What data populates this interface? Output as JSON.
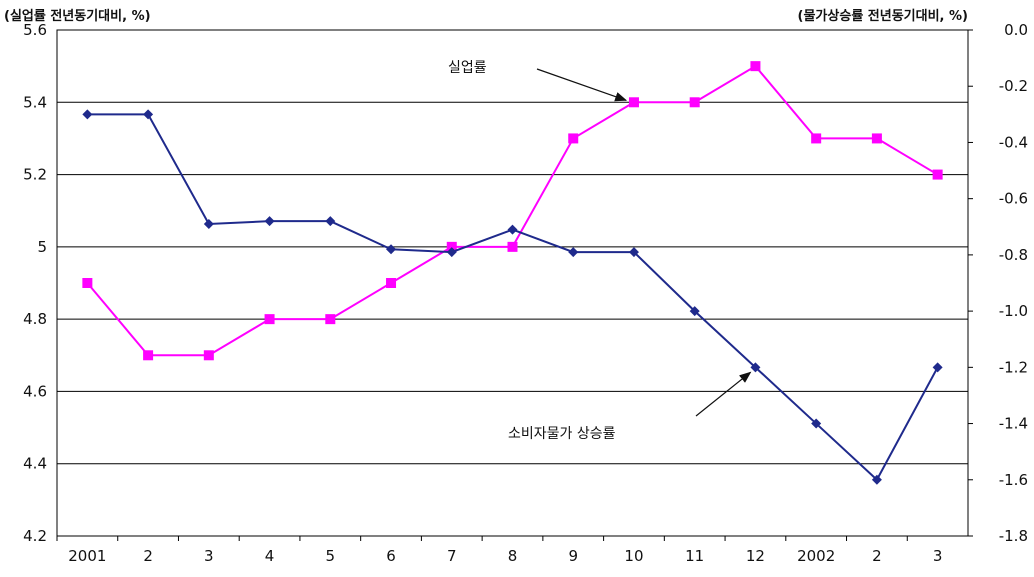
{
  "chart_data": {
    "type": "line",
    "left_axis_title": "(실업률 전년동기대비, %)",
    "right_axis_title": "(물가상승률 전년동기대비, %)",
    "categories": [
      "2001",
      "2",
      "3",
      "4",
      "5",
      "6",
      "7",
      "8",
      "9",
      "10",
      "11",
      "12",
      "2002",
      "2",
      "3"
    ],
    "y_left": {
      "min": 4.2,
      "max": 5.6,
      "step": 0.2,
      "ticks": [
        "4.2",
        "4.4",
        "4.6",
        "4.8",
        "5",
        "5.2",
        "5.4",
        "5.6"
      ]
    },
    "y_right": {
      "min": -1.8,
      "max": 0.0,
      "step": 0.2,
      "ticks": [
        "-1.8",
        "-1.6",
        "-1.4",
        "-1.2",
        "-1.0",
        "-0.8",
        "-0.6",
        "-0.4",
        "-0.2",
        "0.0"
      ]
    },
    "grid": true,
    "series": [
      {
        "name": "실업률",
        "axis": "left",
        "color": "#ff00ff",
        "marker": "square",
        "values": [
          4.9,
          4.7,
          4.7,
          4.8,
          4.8,
          4.9,
          5.0,
          5.0,
          5.3,
          5.4,
          5.4,
          5.5,
          5.3,
          5.3,
          5.2
        ]
      },
      {
        "name": "소비자물가 상승률",
        "axis": "right",
        "color": "#1f2a8c",
        "marker": "diamond",
        "values": [
          -0.3,
          -0.3,
          -0.69,
          -0.68,
          -0.68,
          -0.78,
          -0.79,
          -0.71,
          -0.79,
          -0.79,
          -1.0,
          -1.2,
          -1.4,
          -1.6,
          -1.2
        ]
      }
    ],
    "annotations": [
      {
        "text": "실업률",
        "series": 0,
        "point_index": 9
      },
      {
        "text": "소비자물가 상승률",
        "series": 1,
        "point_index": 11
      }
    ]
  }
}
